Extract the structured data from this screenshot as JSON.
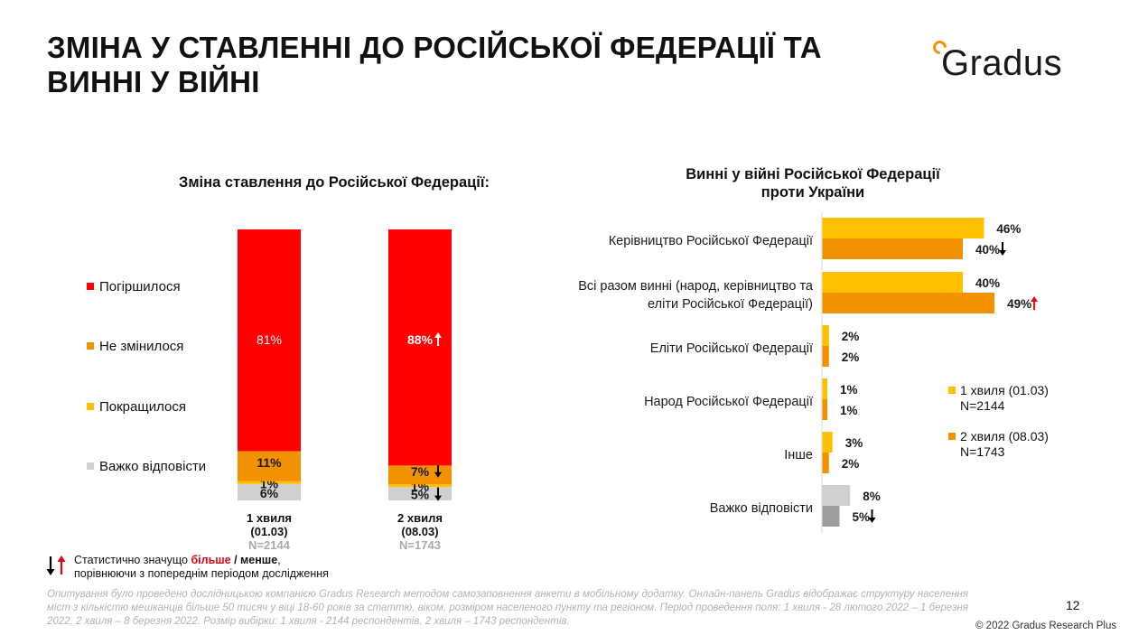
{
  "header": {
    "title_line1": "ЗМІНА У СТАВЛЕННІ ДО РОСІЙСЬКОЇ ФЕДЕРАЦІЇ ТА",
    "title_line2": "ВИННІ У ВІЙНІ",
    "logo_text": "Gradus"
  },
  "colors": {
    "worse": "#ff0000",
    "unchanged": "#f39200",
    "better": "#ffc000",
    "hard": "#d0d0d0",
    "wave1": "#ffc000",
    "wave2": "#f39200",
    "hard_wave1": "#d0d0d0",
    "hard_wave2": "#9e9e9e",
    "arrow_up": "#e30613",
    "arrow_down": "#000000"
  },
  "chart_data": [
    {
      "type": "bar",
      "stacked": true,
      "title": "Зміна ставлення до Російської Федерації:",
      "categories": [
        "1 хвиля (01.03)",
        "2 хвиля (08.03)"
      ],
      "category_lines": [
        [
          "1 хвиля",
          "(01.03)",
          "N=2144"
        ],
        [
          "2 хвиля",
          "(08.03)",
          "N=1743"
        ]
      ],
      "series": [
        {
          "name": "Погіршилося",
          "values": [
            81,
            88
          ],
          "labels": [
            "81%",
            "88%"
          ],
          "change": [
            null,
            "up"
          ]
        },
        {
          "name": "Не змінилося",
          "values": [
            11,
            7
          ],
          "labels": [
            "11%",
            "7%"
          ],
          "change": [
            null,
            "down"
          ]
        },
        {
          "name": "Покращилося",
          "values": [
            1,
            1
          ],
          "labels": [
            "1%",
            "1%"
          ],
          "change": [
            null,
            null
          ]
        },
        {
          "name": "Важко відповісти",
          "values": [
            6,
            5
          ],
          "labels": [
            "6%",
            "5%"
          ],
          "change": [
            null,
            "down"
          ]
        }
      ],
      "ylim": [
        0,
        100
      ],
      "legend": "left"
    },
    {
      "type": "bar",
      "orientation": "horizontal",
      "title_line1": "Винні у війні Російської Федерації",
      "title_line2": "проти України",
      "categories": [
        [
          "Керівництво Російської Федерації"
        ],
        [
          "Всі разом винні (народ, керівництво та",
          "еліти Російської Федерації)"
        ],
        [
          "Еліти Російської Федерації"
        ],
        [
          "Народ Російської Федерації"
        ],
        [
          "Інше"
        ],
        [
          "Важко відповісти"
        ]
      ],
      "series": [
        {
          "name": "1 хвиля (01.03)",
          "n": "N=2144",
          "values": [
            46,
            40,
            2,
            1,
            3,
            8
          ],
          "labels": [
            "46%",
            "40%",
            "2%",
            "1%",
            "3%",
            "8%"
          ],
          "change": [
            null,
            null,
            null,
            null,
            null,
            null
          ]
        },
        {
          "name": "2 хвиля (08.03)",
          "n": "N=1743",
          "values": [
            40,
            49,
            2,
            1,
            2,
            5
          ],
          "labels": [
            "40%",
            "49%",
            "2%",
            "1%",
            "2%",
            "5%"
          ],
          "change": [
            "down",
            "up",
            null,
            null,
            null,
            "down"
          ]
        }
      ],
      "xlim": [
        0,
        50
      ],
      "legend": "right"
    }
  ],
  "note": {
    "part1": "Статистично значущо ",
    "more": "більше",
    "sep": " / менше",
    "part2": ",",
    "line2": "порівнюючи з попереднім періодом дослідження"
  },
  "footer": {
    "text": "Опитування було проведено дослідницькою компанією Gradus Research методом самозаповнення анкети в мобільному додатку. Онлайн-панель Gradus відображає структуру населення міст з кількістю мешканців більше 50 тисяч у віці 18-60 років за статтю, віком, розміром населеного пункту та регіоном. Період проведення поля: 1 хвиля - 28 лютого 2022 – 1 березня 2022, 2 хвиля – 8 березня 2022. Розмір вибірки: 1 хвиля - 2144 респондентів, 2 хвиля – 1743 респондентів.",
    "page_number": "12",
    "copyright": "© 2022 Gradus Research Plus"
  }
}
